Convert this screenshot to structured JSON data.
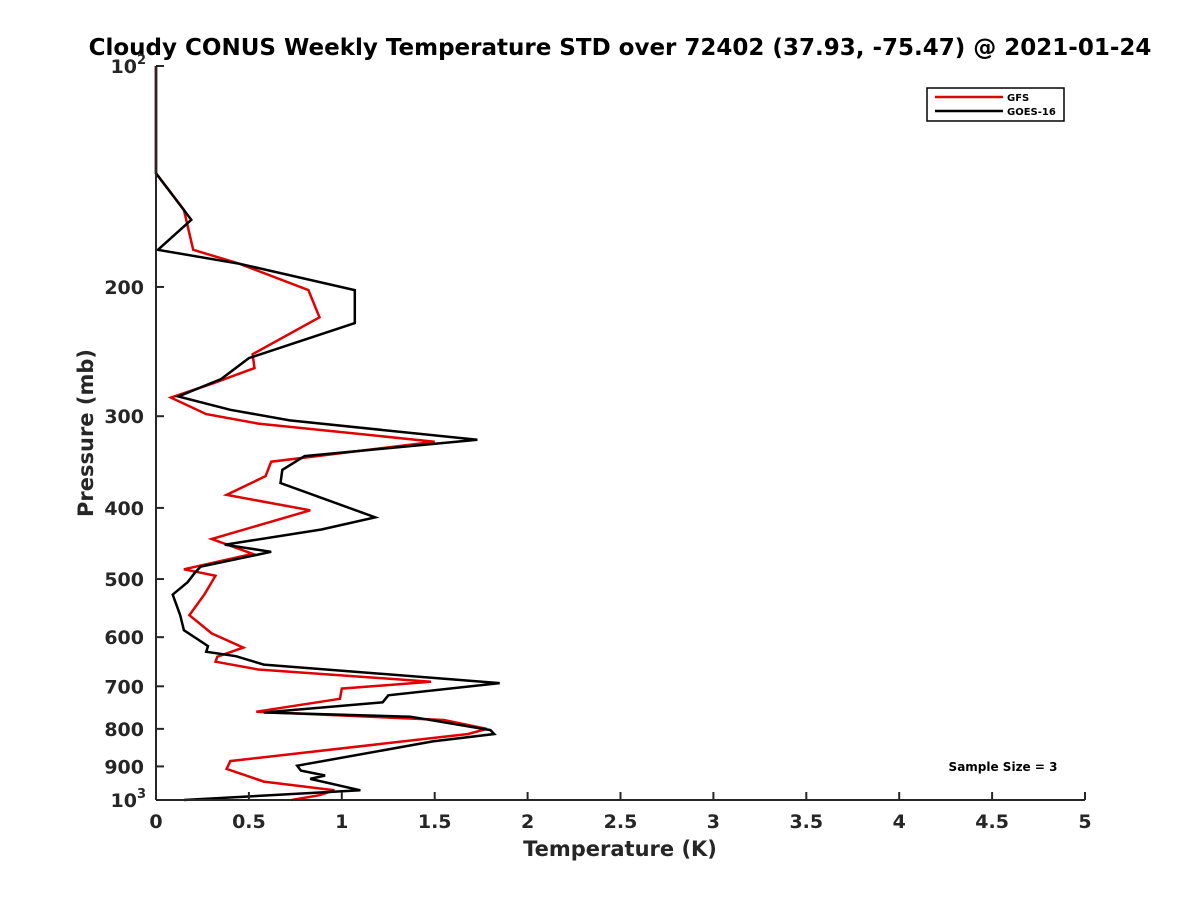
{
  "chart_data": {
    "type": "line",
    "title": "Cloudy CONUS Weekly Temperature STD over 72402 (37.93, -75.47) @ 2021-01-24",
    "xlabel": "Temperature (K)",
    "ylabel": "Pressure (mb)",
    "xlim": [
      0,
      5
    ],
    "ylim": [
      100,
      1000
    ],
    "y_scale": "log",
    "y_reversed": true,
    "grid": false,
    "legend_position": "top-right",
    "x_ticks": [
      {
        "value": 0,
        "label": "0"
      },
      {
        "value": 0.5,
        "label": "0.5"
      },
      {
        "value": 1,
        "label": "1"
      },
      {
        "value": 1.5,
        "label": "1.5"
      },
      {
        "value": 2,
        "label": "2"
      },
      {
        "value": 2.5,
        "label": "2.5"
      },
      {
        "value": 3,
        "label": "3"
      },
      {
        "value": 3.5,
        "label": "3.5"
      },
      {
        "value": 4,
        "label": "4"
      },
      {
        "value": 4.5,
        "label": "4.5"
      },
      {
        "value": 5,
        "label": "5"
      }
    ],
    "y_ticks": [
      {
        "value": 100,
        "base": "10",
        "exp": "2"
      },
      {
        "value": 200,
        "label": "200"
      },
      {
        "value": 300,
        "label": "300"
      },
      {
        "value": 400,
        "label": "400"
      },
      {
        "value": 500,
        "label": "500"
      },
      {
        "value": 600,
        "label": "600"
      },
      {
        "value": 700,
        "label": "700"
      },
      {
        "value": 800,
        "label": "800"
      },
      {
        "value": 900,
        "label": "900"
      },
      {
        "value": 1000,
        "base": "10",
        "exp": "3"
      }
    ],
    "annotation": "Sample Size = 3",
    "series": [
      {
        "name": "GFS",
        "color": "#e00000",
        "points": [
          [
            0,
            100
          ],
          [
            0,
            120
          ],
          [
            0,
            140
          ],
          [
            0.15,
            157
          ],
          [
            0.2,
            178
          ],
          [
            0.45,
            186
          ],
          [
            0.82,
            202
          ],
          [
            0.88,
            220
          ],
          [
            0.52,
            247
          ],
          [
            0.53,
            258
          ],
          [
            0.3,
            271
          ],
          [
            0.08,
            283
          ],
          [
            0.27,
            298
          ],
          [
            0.55,
            307
          ],
          [
            1.5,
            325
          ],
          [
            0.62,
            346
          ],
          [
            0.59,
            362
          ],
          [
            0.38,
            384
          ],
          [
            0.83,
            403
          ],
          [
            0.3,
            441
          ],
          [
            0.52,
            462
          ],
          [
            0.15,
            485
          ],
          [
            0.32,
            495
          ],
          [
            0.26,
            525
          ],
          [
            0.18,
            560
          ],
          [
            0.3,
            593
          ],
          [
            0.47,
            620
          ],
          [
            0.33,
            638
          ],
          [
            0.32,
            648
          ],
          [
            0.55,
            664
          ],
          [
            1.48,
            690
          ],
          [
            1.0,
            705
          ],
          [
            0.99,
            728
          ],
          [
            0.54,
            758
          ],
          [
            1.55,
            778
          ],
          [
            1.78,
            800
          ],
          [
            1.68,
            813
          ],
          [
            0.4,
            885
          ],
          [
            0.38,
            907
          ],
          [
            0.58,
            944
          ],
          [
            0.96,
            970
          ],
          [
            0.88,
            985
          ],
          [
            0.73,
            1000
          ]
        ]
      },
      {
        "name": "GOES-16",
        "color": "#000000",
        "points": [
          [
            0,
            100
          ],
          [
            0,
            120
          ],
          [
            0,
            140
          ],
          [
            0.19,
            162
          ],
          [
            0.01,
            178
          ],
          [
            0.45,
            186
          ],
          [
            1.07,
            202
          ],
          [
            1.07,
            224
          ],
          [
            0.5,
            250
          ],
          [
            0.35,
            267
          ],
          [
            0.12,
            282
          ],
          [
            0.4,
            294
          ],
          [
            0.72,
            304
          ],
          [
            1.73,
            323
          ],
          [
            0.8,
            340
          ],
          [
            0.68,
            355
          ],
          [
            0.67,
            370
          ],
          [
            1.18,
            412
          ],
          [
            0.89,
            428
          ],
          [
            0.37,
            449
          ],
          [
            0.62,
            459
          ],
          [
            0.24,
            481
          ],
          [
            0.21,
            490
          ],
          [
            0.17,
            505
          ],
          [
            0.09,
            525
          ],
          [
            0.13,
            560
          ],
          [
            0.15,
            587
          ],
          [
            0.28,
            617
          ],
          [
            0.27,
            628
          ],
          [
            0.43,
            637
          ],
          [
            0.58,
            654
          ],
          [
            1.85,
            693
          ],
          [
            1.25,
            720
          ],
          [
            1.22,
            736
          ],
          [
            0.58,
            760
          ],
          [
            1.37,
            770
          ],
          [
            1.8,
            803
          ],
          [
            1.82,
            813
          ],
          [
            1.49,
            832
          ],
          [
            0.76,
            898
          ],
          [
            0.78,
            912
          ],
          [
            0.91,
            926
          ],
          [
            0.83,
            936
          ],
          [
            1.1,
            970
          ],
          [
            0.15,
            1000
          ]
        ]
      }
    ]
  }
}
